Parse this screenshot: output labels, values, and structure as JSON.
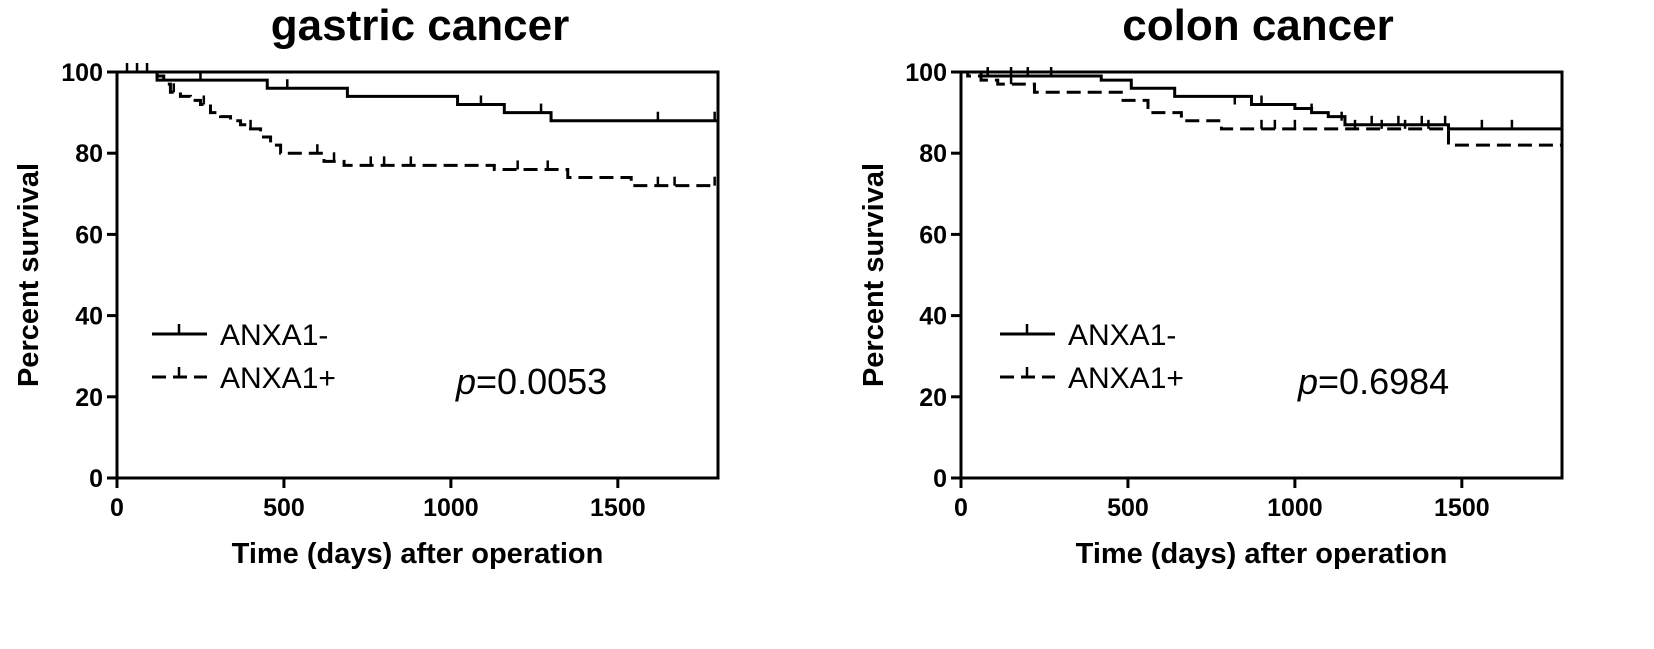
{
  "chart_data": [
    {
      "type": "line",
      "subtype": "kaplan-meier",
      "title": "gastric cancer",
      "xlabel": "Time (days) after operation",
      "ylabel": "Percent survival",
      "xlim": [
        0,
        1800
      ],
      "ylim": [
        0,
        100
      ],
      "xticks": [
        0,
        500,
        1000,
        1500
      ],
      "yticks": [
        0,
        20,
        40,
        60,
        80,
        100
      ],
      "grid": false,
      "legend": "bottom-left",
      "annotation": {
        "prefix": "p",
        "text": "=0.0053"
      },
      "series": [
        {
          "name": "ANXA1-",
          "style": "solid",
          "x": [
            0,
            120,
            180,
            450,
            690,
            1020,
            1160,
            1300,
            1800
          ],
          "y": [
            100,
            98,
            98,
            96,
            94,
            92,
            90,
            88,
            88
          ],
          "censor": [
            [
              30,
              100
            ],
            [
              60,
              100
            ],
            [
              90,
              100
            ],
            [
              250,
              98
            ],
            [
              510,
              96
            ],
            [
              1090,
              92
            ],
            [
              1270,
              90
            ],
            [
              1620,
              88
            ],
            [
              1790,
              88
            ]
          ]
        },
        {
          "name": "ANXA1+",
          "style": "dashed",
          "x": [
            0,
            120,
            140,
            160,
            190,
            220,
            250,
            280,
            310,
            340,
            370,
            400,
            430,
            460,
            490,
            580,
            620,
            680,
            1130,
            1350,
            1540,
            1800
          ],
          "y": [
            100,
            99,
            97,
            95,
            94,
            93,
            92,
            90,
            89,
            88,
            87,
            86,
            84,
            82,
            80,
            80,
            78,
            77,
            76,
            74,
            72,
            72
          ],
          "censor": [
            [
              170,
              95
            ],
            [
              260,
              92
            ],
            [
              400,
              86
            ],
            [
              600,
              80
            ],
            [
              650,
              78
            ],
            [
              760,
              77
            ],
            [
              800,
              77
            ],
            [
              880,
              77
            ],
            [
              1200,
              76
            ],
            [
              1290,
              76
            ],
            [
              1620,
              72
            ],
            [
              1670,
              72
            ],
            [
              1790,
              72
            ]
          ]
        }
      ]
    },
    {
      "type": "line",
      "subtype": "kaplan-meier",
      "title": "colon cancer",
      "xlabel": "Time (days) after operation",
      "ylabel": "Percent survival",
      "xlim": [
        0,
        1800
      ],
      "ylim": [
        0,
        100
      ],
      "xticks": [
        0,
        500,
        1000,
        1500
      ],
      "yticks": [
        0,
        20,
        40,
        60,
        80,
        100
      ],
      "grid": false,
      "legend": "bottom-left",
      "annotation": {
        "prefix": "p",
        "text": "=0.6984"
      },
      "series": [
        {
          "name": "ANXA1-",
          "style": "solid",
          "x": [
            0,
            60,
            300,
            420,
            510,
            640,
            870,
            1000,
            1050,
            1100,
            1150,
            1460,
            1800
          ],
          "y": [
            100,
            99,
            99,
            98,
            96,
            94,
            92,
            91,
            90,
            89,
            87,
            86,
            86
          ],
          "censor": [
            [
              80,
              99
            ],
            [
              150,
              99
            ],
            [
              200,
              99
            ],
            [
              270,
              99
            ],
            [
              820,
              92
            ],
            [
              900,
              92
            ],
            [
              1050,
              90
            ],
            [
              1140,
              88
            ],
            [
              1230,
              87
            ],
            [
              1310,
              87
            ],
            [
              1380,
              87
            ],
            [
              1450,
              87
            ],
            [
              1560,
              86
            ],
            [
              1650,
              86
            ]
          ]
        },
        {
          "name": "ANXA1+",
          "style": "dashed",
          "x": [
            0,
            20,
            60,
            110,
            220,
            480,
            560,
            660,
            780,
            1460,
            1800
          ],
          "y": [
            100,
            99,
            98,
            97,
            95,
            93,
            90,
            88,
            86,
            82,
            82
          ],
          "censor": [
            [
              150,
              97
            ],
            [
              900,
              86
            ],
            [
              940,
              86
            ],
            [
              1000,
              86
            ],
            [
              1180,
              86
            ],
            [
              1260,
              86
            ],
            [
              1330,
              86
            ],
            [
              1400,
              86
            ]
          ]
        }
      ]
    }
  ]
}
